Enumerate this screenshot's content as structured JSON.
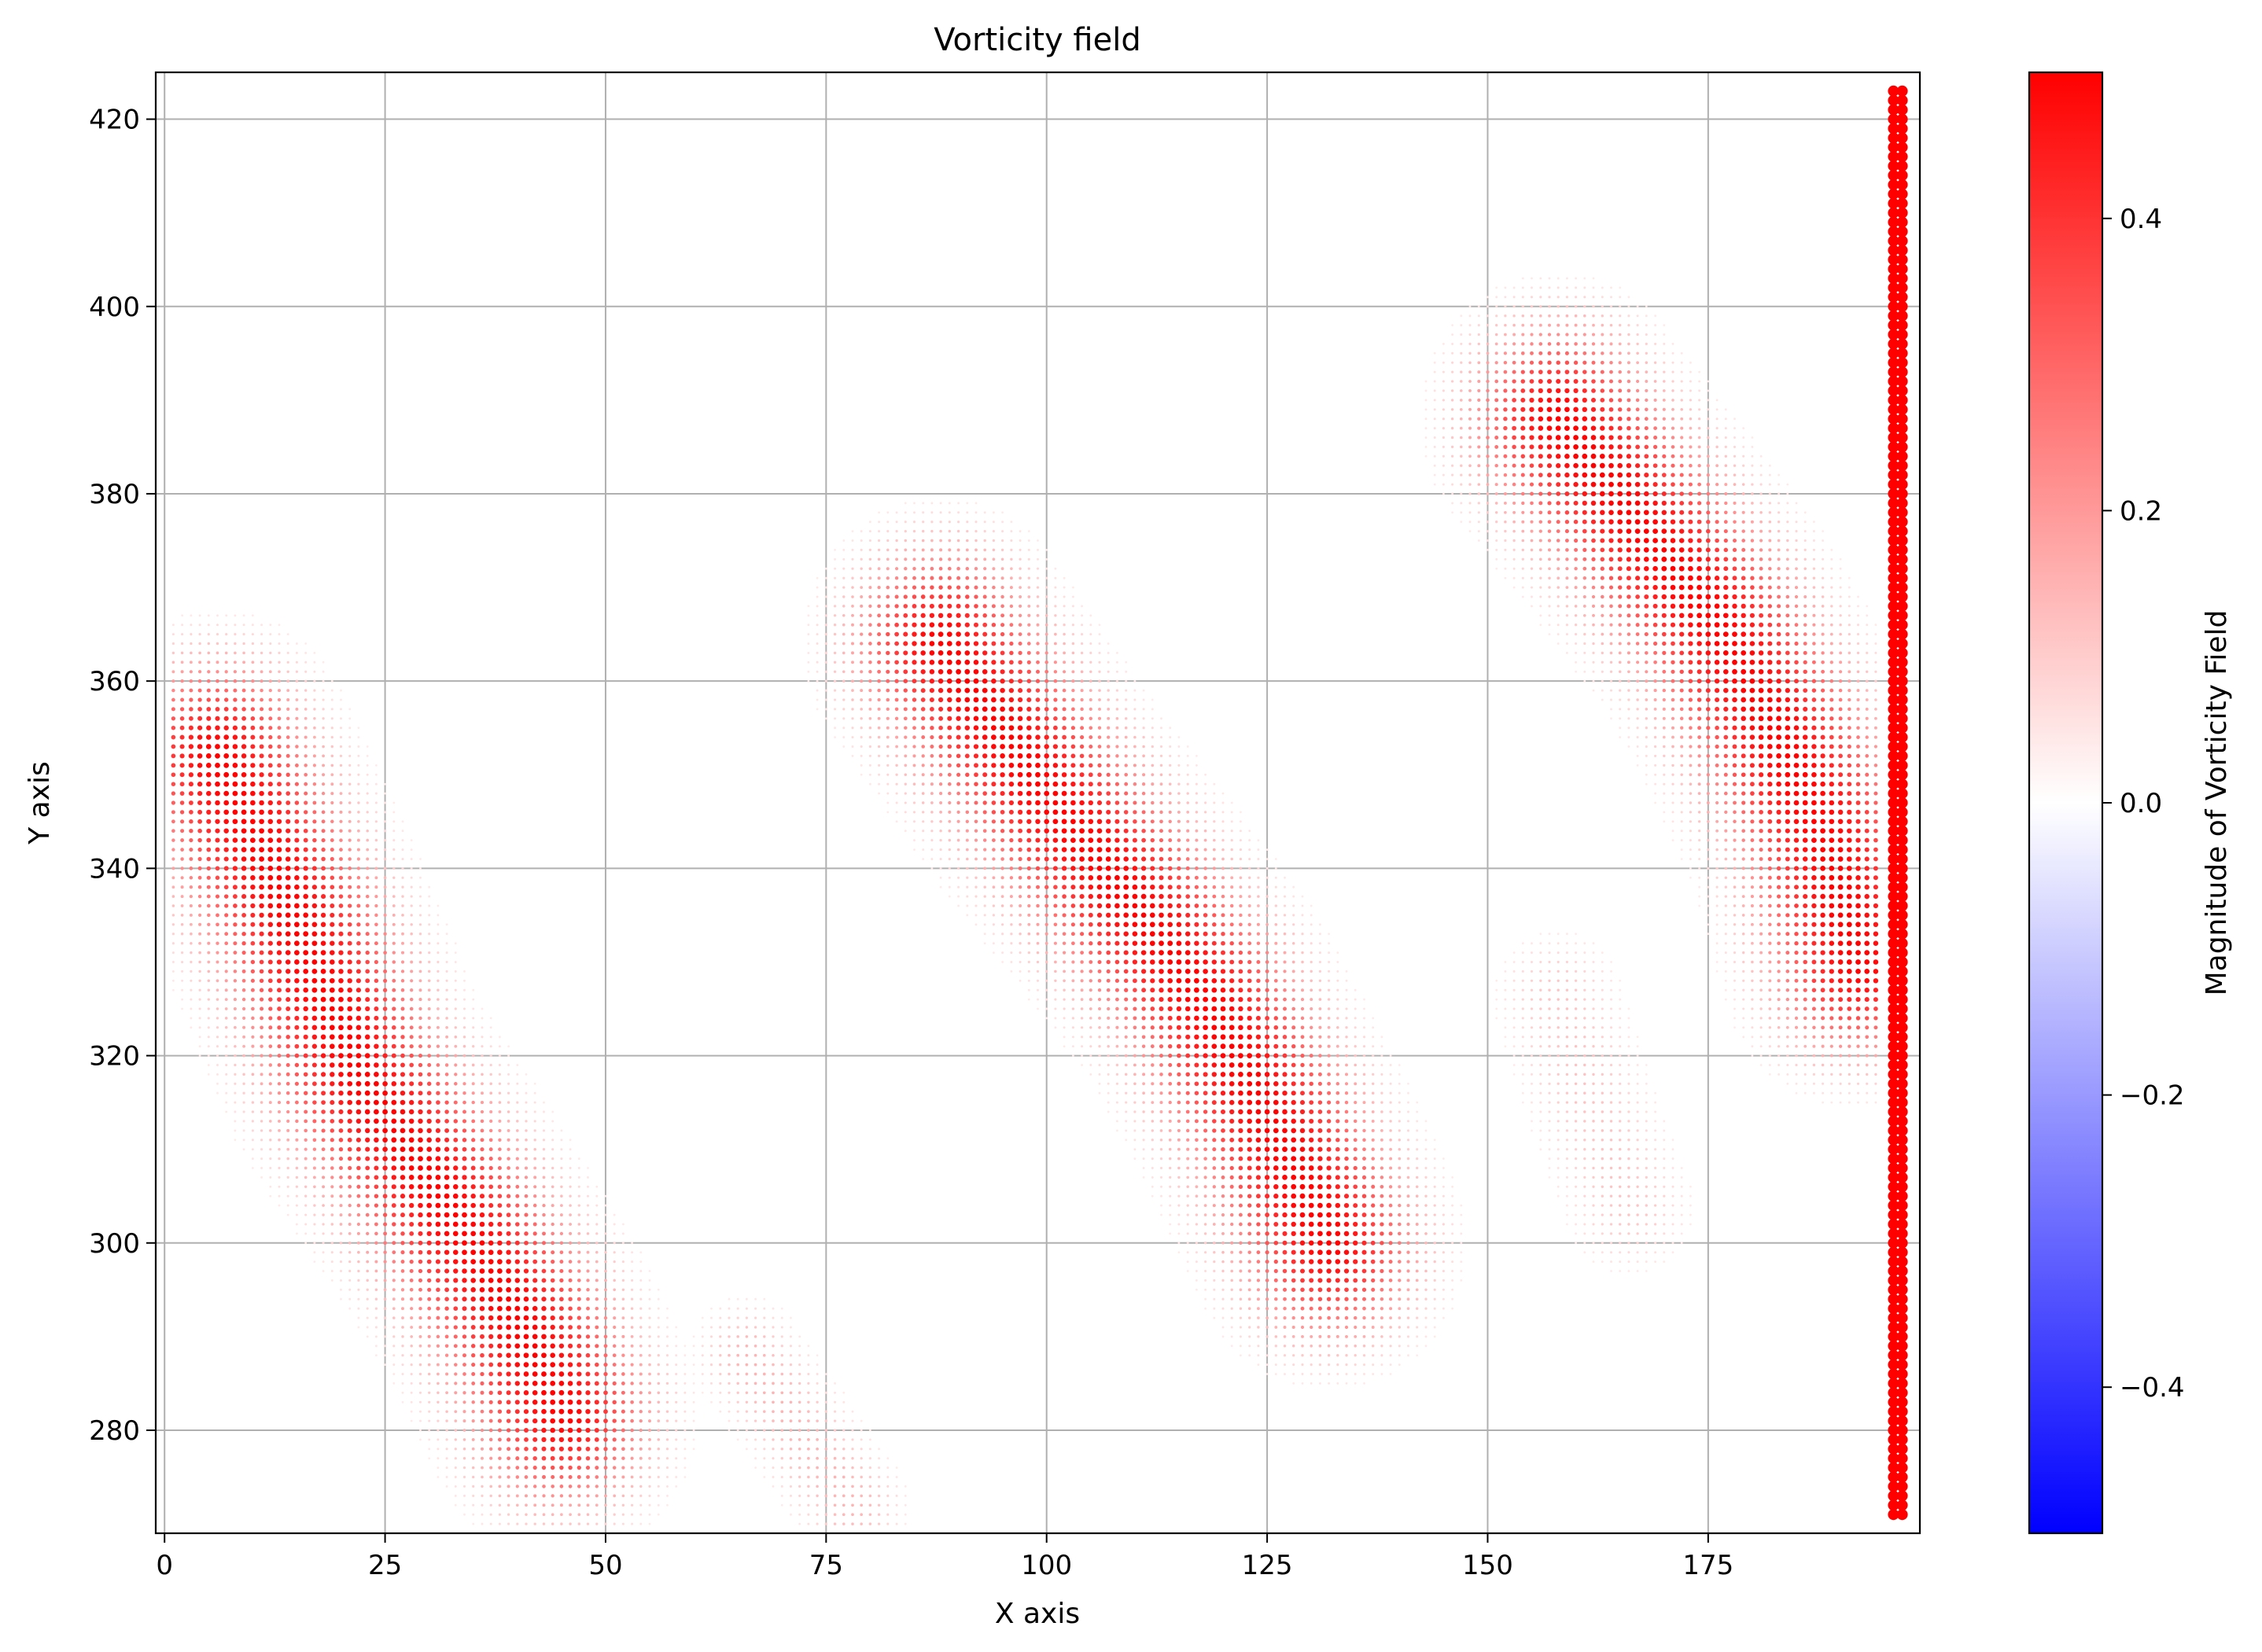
{
  "chart_data": {
    "type": "scatter",
    "title": "Vorticity field",
    "xlabel": "X axis",
    "ylabel": "Y axis",
    "xlim": [
      -1,
      199
    ],
    "ylim": [
      269,
      425
    ],
    "xticks": [
      0,
      25,
      50,
      75,
      100,
      125,
      150,
      175
    ],
    "yticks": [
      280,
      300,
      320,
      340,
      360,
      380,
      400,
      420
    ],
    "grid": true,
    "colormap": "bwr",
    "colors": {
      "negative": "#0000ff",
      "zero": "#ffffff",
      "positive": "#ff0000",
      "grid": "#b0b0b0"
    },
    "colorbar": {
      "label": "Magnitude of Vorticity Field",
      "range": [
        -0.5,
        0.5
      ],
      "ticks": [
        -0.4,
        -0.2,
        0.0,
        0.2,
        0.4
      ],
      "tick_labels": [
        "−0.4",
        "−0.2",
        "0.0",
        "0.2",
        "0.4"
      ]
    },
    "field_structure": {
      "grid_step": 1,
      "x_range": [
        1,
        196
      ],
      "y_range": [
        270,
        424
      ],
      "vortex_bands": [
        {
          "name": "left band",
          "path": [
            [
              6,
              352
            ],
            [
              15,
              334
            ],
            [
              22,
              318
            ],
            [
              32,
              304
            ],
            [
              40,
              292
            ],
            [
              45,
              282
            ]
          ],
          "peak": 0.5,
          "width": 7
        },
        {
          "name": "center band",
          "path": [
            [
              88,
              364
            ],
            [
              100,
              348
            ],
            [
              110,
              336
            ],
            [
              118,
              326
            ],
            [
              126,
              312
            ],
            [
              132,
              300
            ]
          ],
          "peak": 0.5,
          "width": 7
        },
        {
          "name": "right band",
          "path": [
            [
              158,
              388
            ],
            [
              168,
              376
            ],
            [
              176,
              366
            ],
            [
              182,
              356
            ],
            [
              188,
              344
            ],
            [
              192,
              330
            ]
          ],
          "peak": 0.5,
          "width": 7
        },
        {
          "name": "lower center patch",
          "path": [
            [
              66,
              288
            ],
            [
              72,
              280
            ],
            [
              78,
              272
            ]
          ],
          "peak": 0.15,
          "width": 4
        },
        {
          "name": "right mid patch",
          "path": [
            [
              158,
              326
            ],
            [
              162,
              314
            ],
            [
              166,
              304
            ]
          ],
          "peak": 0.12,
          "width": 5
        }
      ],
      "boundary_column": {
        "x": [
          196,
          197
        ],
        "y_range": [
          271,
          423
        ],
        "value": 0.5
      }
    }
  }
}
